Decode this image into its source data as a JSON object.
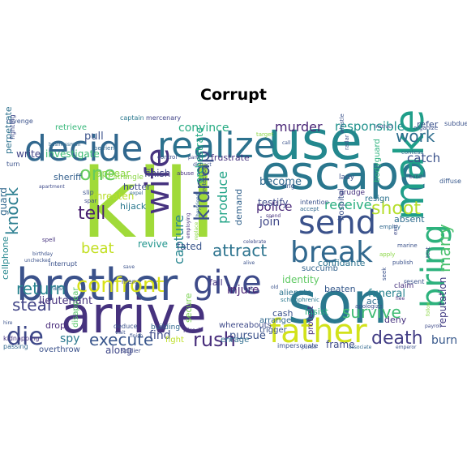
{
  "title": "Corrupt",
  "words": [
    {
      "text": "kill",
      "color": "#a0da39"
    },
    {
      "text": "escape",
      "color": "#2a778e"
    },
    {
      "text": "use",
      "color": "#23888e"
    },
    {
      "text": "arrive",
      "color": "#46327e"
    },
    {
      "text": "brother",
      "color": "#3b528b"
    },
    {
      "text": "son",
      "color": "#2a788e"
    },
    {
      "text": "decide",
      "color": "#31688e"
    },
    {
      "text": "realize",
      "color": "#2c728e"
    },
    {
      "text": "make",
      "color": "#1f9e89"
    },
    {
      "text": "send",
      "color": "#3b528b"
    },
    {
      "text": "father",
      "color": "#d2e21b"
    },
    {
      "text": "break",
      "color": "#31688e"
    },
    {
      "text": "wife",
      "color": "#46337f"
    },
    {
      "text": "give",
      "color": "#3e4a89"
    },
    {
      "text": "bring",
      "color": "#2db27d"
    },
    {
      "text": "kidnap",
      "color": "#3b528b"
    },
    {
      "text": "confront",
      "color": "#d8e219"
    },
    {
      "text": "shoot",
      "color": "#b5de2b"
    },
    {
      "text": "knock",
      "color": "#287c8e"
    },
    {
      "text": "die",
      "color": "#3e4989"
    },
    {
      "text": "return",
      "color": "#26828e"
    },
    {
      "text": "steal",
      "color": "#414487"
    },
    {
      "text": "rush",
      "color": "#472d7b"
    },
    {
      "text": "execute",
      "color": "#39568c"
    },
    {
      "text": "death",
      "color": "#433e85"
    },
    {
      "text": "survive",
      "color": "#3fbc73"
    },
    {
      "text": "tell",
      "color": "#481f70"
    },
    {
      "text": "one",
      "color": "#65cb5e"
    },
    {
      "text": "attract",
      "color": "#2c738e"
    },
    {
      "text": "work",
      "color": "#2e6e8e"
    },
    {
      "text": "marry",
      "color": "#4ac16d"
    },
    {
      "text": "beat",
      "color": "#c2df23"
    },
    {
      "text": "capture",
      "color": "#25848e"
    },
    {
      "text": "produce",
      "color": "#20a386"
    },
    {
      "text": "responsible",
      "color": "#20928c"
    },
    {
      "text": "receive",
      "color": "#29af7f"
    },
    {
      "text": "murder",
      "color": "#482475"
    },
    {
      "text": "convince",
      "color": "#25ab82"
    },
    {
      "text": "police",
      "color": "#482878"
    },
    {
      "text": "catch",
      "color": "#3b528b"
    },
    {
      "text": "find",
      "color": "#3e4a89"
    },
    {
      "text": "spy",
      "color": "#2a788e"
    },
    {
      "text": "burn",
      "color": "#38598c"
    },
    {
      "text": "join",
      "color": "#3f4788"
    },
    {
      "text": "become",
      "color": "#31688e"
    },
    {
      "text": "injure",
      "color": "#482173"
    },
    {
      "text": "funeral",
      "color": "#26828e"
    },
    {
      "text": "investigate",
      "color": "#3dbc74"
    },
    {
      "text": "write",
      "color": "#414487"
    },
    {
      "text": "lieutenant",
      "color": "#46327e"
    },
    {
      "text": "reputation",
      "color": "#433d84"
    },
    {
      "text": "pursue",
      "color": "#3b528b"
    },
    {
      "text": "testify",
      "color": "#3e4a89"
    },
    {
      "text": "identity",
      "color": "#5ec962"
    },
    {
      "text": "threaten",
      "color": "#b8de29"
    },
    {
      "text": "sheriff",
      "color": "#35608d"
    },
    {
      "text": "appear",
      "color": "#8bd646"
    },
    {
      "text": "confidante",
      "color": "#2c728e"
    },
    {
      "text": "beaten",
      "color": "#375a8c"
    },
    {
      "text": "absent",
      "color": "#2f6c8e"
    },
    {
      "text": "revive",
      "color": "#1f948c"
    },
    {
      "text": "fated",
      "color": "#39558c"
    },
    {
      "text": "cash",
      "color": "#3b528b"
    },
    {
      "text": "insist",
      "color": "#29af7f"
    },
    {
      "text": "act",
      "color": "#2e6e8e"
    },
    {
      "text": "deny",
      "color": "#46327e"
    },
    {
      "text": "frame",
      "color": "#3e4a89"
    },
    {
      "text": "finish",
      "color": "#414487"
    },
    {
      "text": "hijack",
      "color": "#2a788e"
    },
    {
      "text": "orchestrate",
      "color": "#22a884"
    },
    {
      "text": "along",
      "color": "#3f4788"
    },
    {
      "text": "fight",
      "color": "#bddf26"
    },
    {
      "text": "secure",
      "color": "#7ad151"
    },
    {
      "text": "refer",
      "color": "#3b528b"
    },
    {
      "text": "pull",
      "color": "#3b528b"
    },
    {
      "text": "retrieve",
      "color": "#35b779"
    },
    {
      "text": "guard",
      "color": "#31688e"
    },
    {
      "text": "perpetrate",
      "color": "#2d718e"
    },
    {
      "text": "cellphone",
      "color": "#24878e"
    },
    {
      "text": "drop",
      "color": "#472a7a"
    },
    {
      "text": "overthrow",
      "color": "#3b528b"
    },
    {
      "text": "disappear",
      "color": "#56c667"
    },
    {
      "text": "hotter",
      "color": "#3e4989"
    },
    {
      "text": "enrage",
      "color": "#2e6d8e"
    },
    {
      "text": "whereabouts",
      "color": "#3e4a89"
    },
    {
      "text": "arrange",
      "color": "#31688e"
    },
    {
      "text": "trigger",
      "color": "#3b528b"
    },
    {
      "text": "demand",
      "color": "#33638d"
    },
    {
      "text": "fall",
      "color": "#46337f"
    },
    {
      "text": "protest",
      "color": "#472d7b"
    },
    {
      "text": "alienate",
      "color": "#2c738e"
    },
    {
      "text": "succumb",
      "color": "#33638d"
    },
    {
      "text": "subdue",
      "color": "#3b528b"
    },
    {
      "text": "diffuse",
      "color": "#38598c"
    },
    {
      "text": "lady",
      "color": "#3b528b"
    },
    {
      "text": "grudge",
      "color": "#46337f"
    },
    {
      "text": "resign",
      "color": "#2c728e"
    },
    {
      "text": "bodyguard",
      "color": "#2db27d"
    },
    {
      "text": "hospital",
      "color": "#3b528b"
    },
    {
      "text": "impersonate",
      "color": "#3b528b"
    },
    {
      "text": "passing",
      "color": "#31688e"
    },
    {
      "text": "kidnapping",
      "color": "#46327e"
    },
    {
      "text": "revenge",
      "color": "#3b528b"
    },
    {
      "text": "fighting",
      "color": "#3e4a89"
    },
    {
      "text": "captain",
      "color": "#2a788e"
    },
    {
      "text": "mercenary",
      "color": "#414487"
    },
    {
      "text": "building",
      "color": "#31688e"
    },
    {
      "text": "deduce",
      "color": "#3b528b"
    },
    {
      "text": "hired",
      "color": "#46327e"
    },
    {
      "text": "soldier",
      "color": "#3e4a89"
    },
    {
      "text": "frustrate",
      "color": "#46327e"
    },
    {
      "text": "control",
      "color": "#3b528b"
    },
    {
      "text": "befriend",
      "color": "#31688e"
    },
    {
      "text": "strangle",
      "color": "#8bd646"
    },
    {
      "text": "turn",
      "color": "#3b528b"
    },
    {
      "text": "abuse",
      "color": "#46327e"
    },
    {
      "text": "ring",
      "color": "#3b528b"
    },
    {
      "text": "intention",
      "color": "#3b528b"
    },
    {
      "text": "accept",
      "color": "#31688e"
    },
    {
      "text": "spell",
      "color": "#46327e"
    },
    {
      "text": "interrupt",
      "color": "#3b528b"
    },
    {
      "text": "raise",
      "color": "#31688e"
    },
    {
      "text": "men",
      "color": "#3e4a89"
    },
    {
      "text": "slip",
      "color": "#3b528b"
    },
    {
      "text": "spar",
      "color": "#3e4a89"
    },
    {
      "text": "organize",
      "color": "#3b528b"
    },
    {
      "text": "contess",
      "color": "#31688e"
    },
    {
      "text": "marine",
      "color": "#3b528b"
    },
    {
      "text": "claim",
      "color": "#46327e"
    },
    {
      "text": "resent",
      "color": "#3b528b"
    },
    {
      "text": "exit",
      "color": "#3e4a89"
    },
    {
      "text": "apply",
      "color": "#8bd646"
    },
    {
      "text": "employ",
      "color": "#31688e"
    },
    {
      "text": "publish",
      "color": "#3b528b"
    },
    {
      "text": "flee",
      "color": "#46327e"
    },
    {
      "text": "seek",
      "color": "#3b528b"
    },
    {
      "text": "test",
      "color": "#3e4a89"
    },
    {
      "text": "schizophrenic",
      "color": "#2a788e"
    },
    {
      "text": "emperor",
      "color": "#3b528b"
    },
    {
      "text": "associate",
      "color": "#31688e"
    },
    {
      "text": "apologize",
      "color": "#3b528b"
    },
    {
      "text": "target",
      "color": "#8bd646"
    },
    {
      "text": "radar",
      "color": "#3b528b"
    },
    {
      "text": "whistle",
      "color": "#3b528b"
    },
    {
      "text": "instruct",
      "color": "#3e4a89"
    },
    {
      "text": "bond",
      "color": "#46327e"
    },
    {
      "text": "protection",
      "color": "#3b528b"
    },
    {
      "text": "punch",
      "color": "#3b528b"
    },
    {
      "text": "businessman",
      "color": "#31688e"
    },
    {
      "text": "apartment",
      "color": "#3e4a89"
    },
    {
      "text": "call",
      "color": "#3b528b"
    },
    {
      "text": "spend",
      "color": "#46327e"
    },
    {
      "text": "wait",
      "color": "#3b528b"
    },
    {
      "text": "visit",
      "color": "#3b528b"
    },
    {
      "text": "replace",
      "color": "#8bd646"
    },
    {
      "text": "celebrate",
      "color": "#3e4a89"
    },
    {
      "text": "alive",
      "color": "#3b528b"
    },
    {
      "text": "boyfriend",
      "color": "#31688e"
    },
    {
      "text": "distract",
      "color": "#3b528b"
    },
    {
      "text": "employing",
      "color": "#46327e"
    },
    {
      "text": "old",
      "color": "#3b528b"
    },
    {
      "text": "part",
      "color": "#3e4a89"
    },
    {
      "text": "hire",
      "color": "#3b528b"
    },
    {
      "text": "follow",
      "color": "#8bd646"
    },
    {
      "text": "save",
      "color": "#3b528b"
    },
    {
      "text": "expel",
      "color": "#31688e"
    },
    {
      "text": "unchecked",
      "color": "#3b528b"
    },
    {
      "text": "payroll",
      "color": "#3e4a89"
    },
    {
      "text": "finish",
      "color": "#3b528b"
    },
    {
      "text": "birthday",
      "color": "#3b528b"
    },
    {
      "text": "dare",
      "color": "#46327e"
    },
    {
      "text": "harm",
      "color": "#3b528b"
    },
    {
      "text": "put",
      "color": "#3b528b"
    }
  ]
}
